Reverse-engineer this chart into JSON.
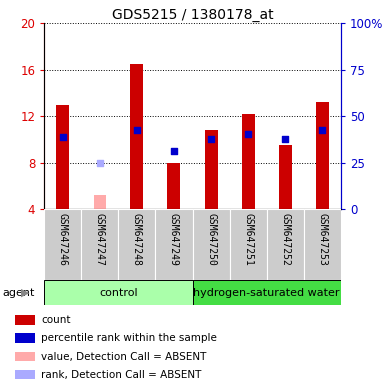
{
  "title": "GDS5215 / 1380178_at",
  "samples": [
    "GSM647246",
    "GSM647247",
    "GSM647248",
    "GSM647249",
    "GSM647250",
    "GSM647251",
    "GSM647252",
    "GSM647253"
  ],
  "red_bars": [
    13.0,
    0.0,
    16.5,
    8.0,
    10.8,
    12.2,
    9.5,
    13.2
  ],
  "blue_squares": [
    10.2,
    null,
    10.8,
    9.0,
    10.0,
    10.5,
    10.0,
    10.8
  ],
  "pink_bars": [
    null,
    5.2,
    null,
    null,
    null,
    null,
    null,
    null
  ],
  "light_blue_squares": [
    null,
    8.0,
    null,
    null,
    null,
    null,
    null,
    null
  ],
  "groups": [
    {
      "label": "control",
      "start": 0,
      "end": 3,
      "color": "#aaffaa"
    },
    {
      "label": "hydrogen-saturated water",
      "start": 4,
      "end": 7,
      "color": "#44dd44"
    }
  ],
  "ylim_left": [
    4,
    20
  ],
  "ylim_right": [
    0,
    100
  ],
  "yticks_left": [
    4,
    8,
    12,
    16,
    20
  ],
  "yticks_right": [
    0,
    25,
    50,
    75,
    100
  ],
  "ytick_labels_right": [
    "0",
    "25",
    "50",
    "75",
    "100%"
  ],
  "left_axis_color": "#dd0000",
  "right_axis_color": "#0000cc",
  "bar_width": 0.35,
  "legend_colors": [
    "#cc0000",
    "#0000cc",
    "#ffaaaa",
    "#aaaaff"
  ],
  "legend_labels": [
    "count",
    "percentile rank within the sample",
    "value, Detection Call = ABSENT",
    "rank, Detection Call = ABSENT"
  ],
  "agent_label": "agent"
}
